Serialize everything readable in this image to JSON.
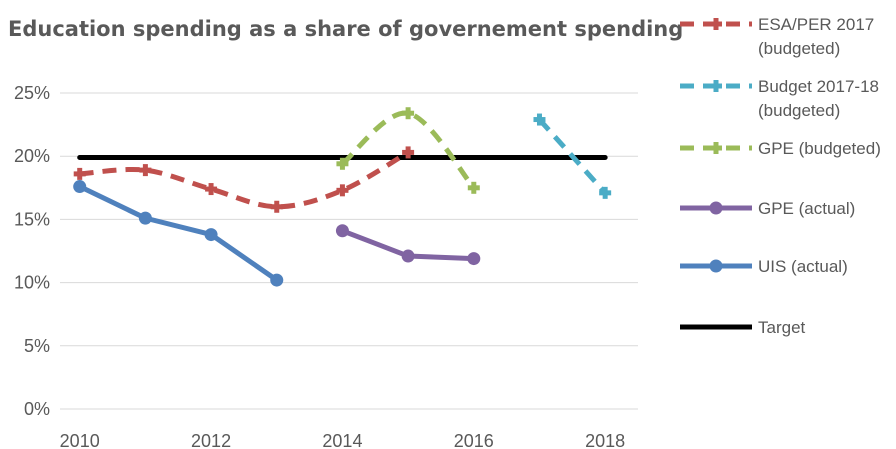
{
  "chart_data": {
    "type": "line",
    "title": "Education spending as a share of governement spending",
    "xlabel": "",
    "ylabel": "",
    "xlim": [
      2009.7,
      2018.5
    ],
    "ylim": [
      0,
      25
    ],
    "x_ticks": [
      2010,
      2012,
      2014,
      2016,
      2018
    ],
    "y_ticks": [
      0,
      5,
      10,
      15,
      20,
      25
    ],
    "y_tick_labels": [
      "0%",
      "5%",
      "10%",
      "15%",
      "20%",
      "25%"
    ],
    "grid": true,
    "legend_position": "right",
    "series": [
      {
        "name": "ESA/PER 2017 (budgeted)",
        "legend_lines": [
          "ESA/PER 2017",
          "(budgeted)"
        ],
        "color": "#c0504d",
        "style": "dashed",
        "marker": "plus",
        "x": [
          2010,
          2011,
          2012,
          2013,
          2014,
          2015
        ],
        "y": [
          18.6,
          18.9,
          17.4,
          16.0,
          17.3,
          20.3
        ]
      },
      {
        "name": "Budget 2017-18 (budgeted)",
        "legend_lines": [
          "Budget 2017-18",
          "(budgeted)"
        ],
        "color": "#4bacc6",
        "style": "dashed",
        "marker": "plus",
        "x": [
          2017,
          2018
        ],
        "y": [
          22.9,
          17.1
        ]
      },
      {
        "name": "GPE (budgeted)",
        "legend_lines": [
          "GPE (budgeted)"
        ],
        "color": "#9bbb59",
        "style": "dashed",
        "marker": "plus",
        "x": [
          2014,
          2015,
          2016
        ],
        "y": [
          19.4,
          23.4,
          17.5
        ]
      },
      {
        "name": "GPE (actual)",
        "legend_lines": [
          "GPE (actual)"
        ],
        "color": "#8064a2",
        "style": "solid",
        "marker": "circle",
        "x": [
          2014,
          2015,
          2016
        ],
        "y": [
          14.1,
          12.1,
          11.9
        ]
      },
      {
        "name": "UIS (actual)",
        "legend_lines": [
          "UIS (actual)"
        ],
        "color": "#4f81bd",
        "style": "solid",
        "marker": "circle",
        "x": [
          2010,
          2011,
          2012,
          2013
        ],
        "y": [
          17.6,
          15.1,
          13.8,
          10.2
        ]
      },
      {
        "name": "Target",
        "legend_lines": [
          "Target"
        ],
        "color": "#000000",
        "style": "solid",
        "marker": "none",
        "x": [
          2010,
          2018
        ],
        "y": [
          19.9,
          19.9
        ]
      }
    ]
  }
}
